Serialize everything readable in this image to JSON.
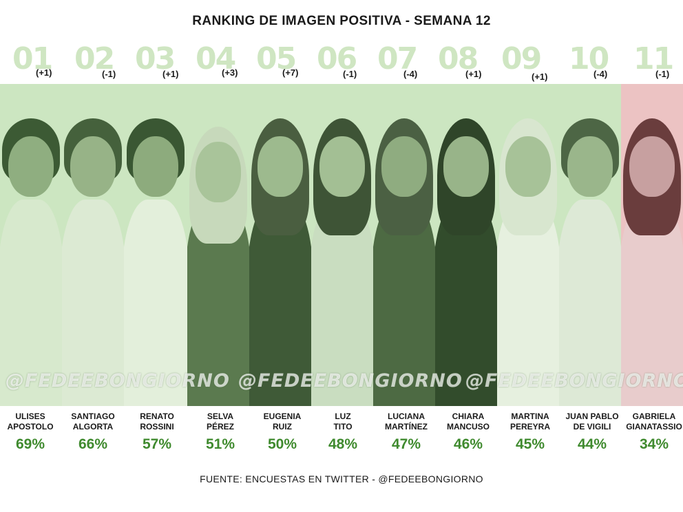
{
  "title": "RANKING DE IMAGEN POSITIVA - SEMANA 12",
  "watermark": "@FEDEEBONGIORNO",
  "footer": "FUENTE: ENCUESTAS EN TWITTER - @FEDEEBONGIORNO",
  "colors": {
    "band": "#cce6c1",
    "last_panel": "#ecc3c3",
    "rank_number": "#cfe6c2",
    "percentage": "#3f8a2e"
  },
  "contestants": [
    {
      "rank": "01",
      "change": "(+1)",
      "name1": "ULISES",
      "name2": "APOSTOLO",
      "pct": "69%",
      "value": 69
    },
    {
      "rank": "02",
      "change": "(-1)",
      "name1": "SANTIAGO",
      "name2": "ALGORTA",
      "pct": "66%",
      "value": 66
    },
    {
      "rank": "03",
      "change": "(+1)",
      "name1": "RENATO",
      "name2": "ROSSINI",
      "pct": "57%",
      "value": 57
    },
    {
      "rank": "04",
      "change": "(+3)",
      "name1": "SELVA",
      "name2": "PÉREZ",
      "pct": "51%",
      "value": 51
    },
    {
      "rank": "05",
      "change": "(+7)",
      "name1": "EUGENIA",
      "name2": "RUIZ",
      "pct": "50%",
      "value": 50
    },
    {
      "rank": "06",
      "change": "(-1)",
      "name1": "LUZ",
      "name2": "TITO",
      "pct": "48%",
      "value": 48
    },
    {
      "rank": "07",
      "change": "(-4)",
      "name1": "LUCIANA",
      "name2": "MARTÍNEZ",
      "pct": "47%",
      "value": 47
    },
    {
      "rank": "08",
      "change": "(+1)",
      "name1": "CHIARA",
      "name2": "MANCUSO",
      "pct": "46%",
      "value": 46
    },
    {
      "rank": "09",
      "change": "(+1)",
      "name1": "MARTINA",
      "name2": "PEREYRA",
      "pct": "45%",
      "value": 45
    },
    {
      "rank": "10",
      "change": "(-4)",
      "name1": "JUAN PABLO",
      "name2": "DE VIGILI",
      "pct": "44%",
      "value": 44
    },
    {
      "rank": "11",
      "change": "(-1)",
      "name1": "GABRIELA",
      "name2": "GIANATASSIO",
      "pct": "34%",
      "value": 34
    }
  ]
}
